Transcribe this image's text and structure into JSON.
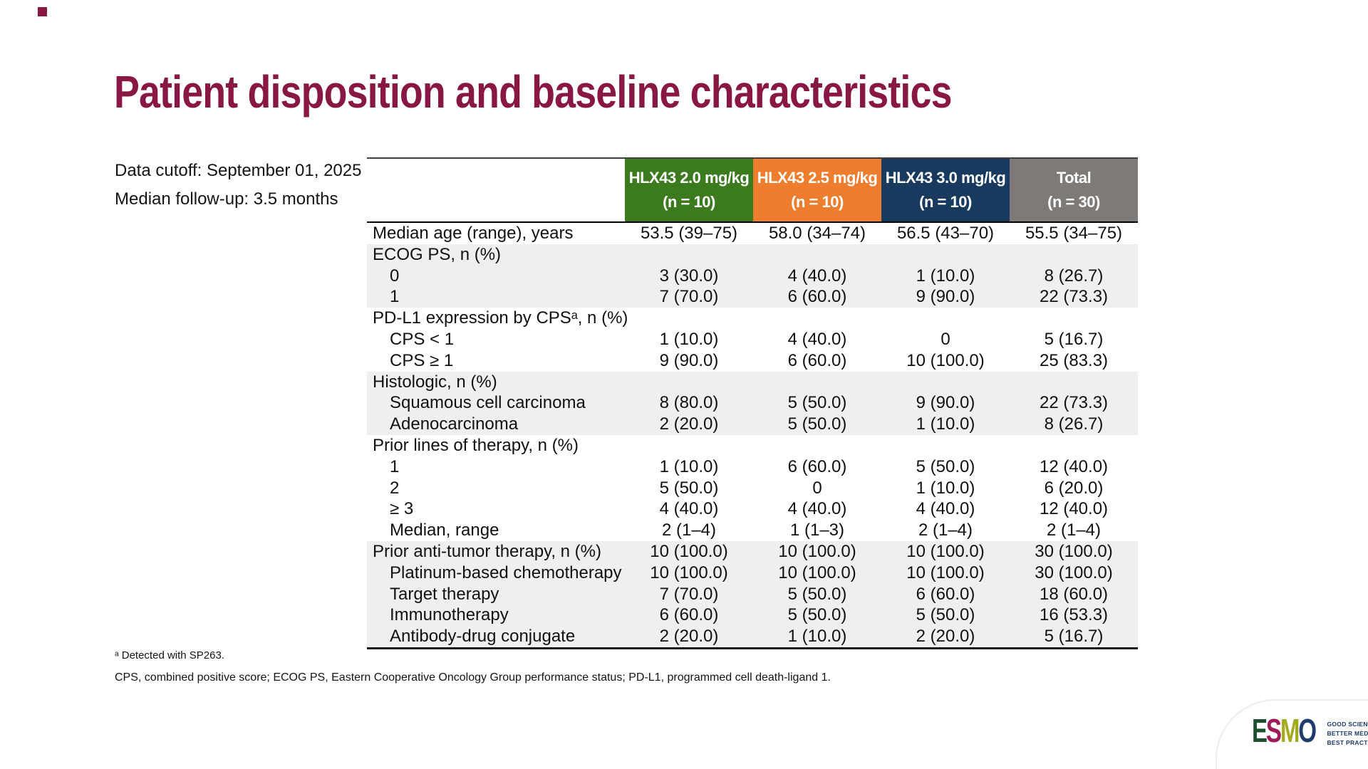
{
  "slide": {
    "title": "Patient disposition and baseline characteristics",
    "data_cutoff": "Data cutoff: September 01, 2025",
    "median_followup": "Median follow-up: 3.5 months",
    "footnote_detected": "ᵃ Detected with SP263.",
    "footnote_abbreviations": "CPS, combined positive score; ECOG PS, Eastern Cooperative Oncology Group performance status; PD-L1, programmed cell death-ligand 1."
  },
  "colors": {
    "title_maroon": "#891743",
    "header_green": "#3c7a1e",
    "header_orange": "#ee7d2d",
    "header_navy": "#173a5e",
    "header_gray": "#7d7a78",
    "row_shade": "#efefef"
  },
  "table": {
    "columns": [
      {
        "line1": "HLX43 2.0 mg/kg",
        "line2": "(n = 10)",
        "color": "#3c7a1e"
      },
      {
        "line1": "HLX43 2.5 mg/kg",
        "line2": "(n = 10)",
        "color": "#ee7d2d"
      },
      {
        "line1": "HLX43 3.0 mg/kg",
        "line2": "(n = 10)",
        "color": "#173a5e"
      },
      {
        "line1": "Total",
        "line2": "(n = 30)",
        "color": "#7d7a78"
      }
    ],
    "rows": [
      {
        "label": "Median age (range), years",
        "indent": 0,
        "shaded": false,
        "values": [
          "53.5 (39–75)",
          "58.0 (34–74)",
          "56.5 (43–70)",
          "55.5 (34–75)"
        ]
      },
      {
        "label": "ECOG PS, n (%)",
        "indent": 0,
        "shaded": true,
        "values": [
          "",
          "",
          "",
          ""
        ]
      },
      {
        "label": "0",
        "indent": 1,
        "shaded": true,
        "values": [
          "3 (30.0)",
          "4 (40.0)",
          "1 (10.0)",
          "8 (26.7)"
        ]
      },
      {
        "label": "1",
        "indent": 1,
        "shaded": true,
        "values": [
          "7 (70.0)",
          "6 (60.0)",
          "9 (90.0)",
          "22 (73.3)"
        ]
      },
      {
        "label": "PD-L1 expression by CPSᵃ, n (%)",
        "indent": 0,
        "shaded": false,
        "values": [
          "",
          "",
          "",
          ""
        ]
      },
      {
        "label": "CPS < 1",
        "indent": 1,
        "shaded": false,
        "values": [
          "1 (10.0)",
          "4 (40.0)",
          "0",
          "5 (16.7)"
        ]
      },
      {
        "label": "CPS ≥ 1",
        "indent": 1,
        "shaded": false,
        "values": [
          "9 (90.0)",
          "6 (60.0)",
          "10 (100.0)",
          "25 (83.3)"
        ]
      },
      {
        "label": "Histologic, n (%)",
        "indent": 0,
        "shaded": true,
        "values": [
          "",
          "",
          "",
          ""
        ]
      },
      {
        "label": "Squamous cell carcinoma",
        "indent": 1,
        "shaded": true,
        "values": [
          "8 (80.0)",
          "5 (50.0)",
          "9 (90.0)",
          "22 (73.3)"
        ]
      },
      {
        "label": "Adenocarcinoma",
        "indent": 1,
        "shaded": true,
        "values": [
          "2 (20.0)",
          "5 (50.0)",
          "1 (10.0)",
          "8 (26.7)"
        ]
      },
      {
        "label": "Prior lines of therapy, n (%)",
        "indent": 0,
        "shaded": false,
        "values": [
          "",
          "",
          "",
          ""
        ]
      },
      {
        "label": "1",
        "indent": 1,
        "shaded": false,
        "values": [
          "1 (10.0)",
          "6 (60.0)",
          "5 (50.0)",
          "12 (40.0)"
        ]
      },
      {
        "label": "2",
        "indent": 1,
        "shaded": false,
        "values": [
          "5 (50.0)",
          "0",
          "1 (10.0)",
          "6 (20.0)"
        ]
      },
      {
        "label": "≥ 3",
        "indent": 1,
        "shaded": false,
        "values": [
          "4 (40.0)",
          "4 (40.0)",
          "4 (40.0)",
          "12 (40.0)"
        ]
      },
      {
        "label": "Median, range",
        "indent": 1,
        "shaded": false,
        "values": [
          "2 (1–4)",
          "1 (1–3)",
          "2 (1–4)",
          "2 (1–4)"
        ]
      },
      {
        "label": "Prior anti-tumor therapy, n (%)",
        "indent": 0,
        "shaded": true,
        "values": [
          "10 (100.0)",
          "10 (100.0)",
          "10 (100.0)",
          "30 (100.0)"
        ]
      },
      {
        "label": "Platinum-based chemotherapy",
        "indent": 1,
        "shaded": true,
        "values": [
          "10 (100.0)",
          "10 (100.0)",
          "10 (100.0)",
          "30 (100.0)"
        ]
      },
      {
        "label": "Target therapy",
        "indent": 1,
        "shaded": true,
        "values": [
          "7 (70.0)",
          "5 (50.0)",
          "6 (60.0)",
          "18 (60.0)"
        ]
      },
      {
        "label": "Immunotherapy",
        "indent": 1,
        "shaded": true,
        "values": [
          "6 (60.0)",
          "5 (50.0)",
          "5 (50.0)",
          "16 (53.3)"
        ]
      },
      {
        "label": "Antibody-drug conjugate",
        "indent": 1,
        "shaded": true,
        "values": [
          "2 (20.0)",
          "1 (10.0)",
          "2 (20.0)",
          "5 (16.7)"
        ]
      }
    ]
  },
  "logo": {
    "letters": [
      {
        "char": "E",
        "color": "#1d4f2f"
      },
      {
        "char": "S",
        "color": "#9e1b57"
      },
      {
        "char": "M",
        "color": "#a4aa1e"
      },
      {
        "char": "O",
        "color": "#1e3d6b"
      }
    ],
    "tagline": [
      "GOOD SCIENCE",
      "BETTER MEDICINE",
      "BEST PRACTICE"
    ]
  }
}
